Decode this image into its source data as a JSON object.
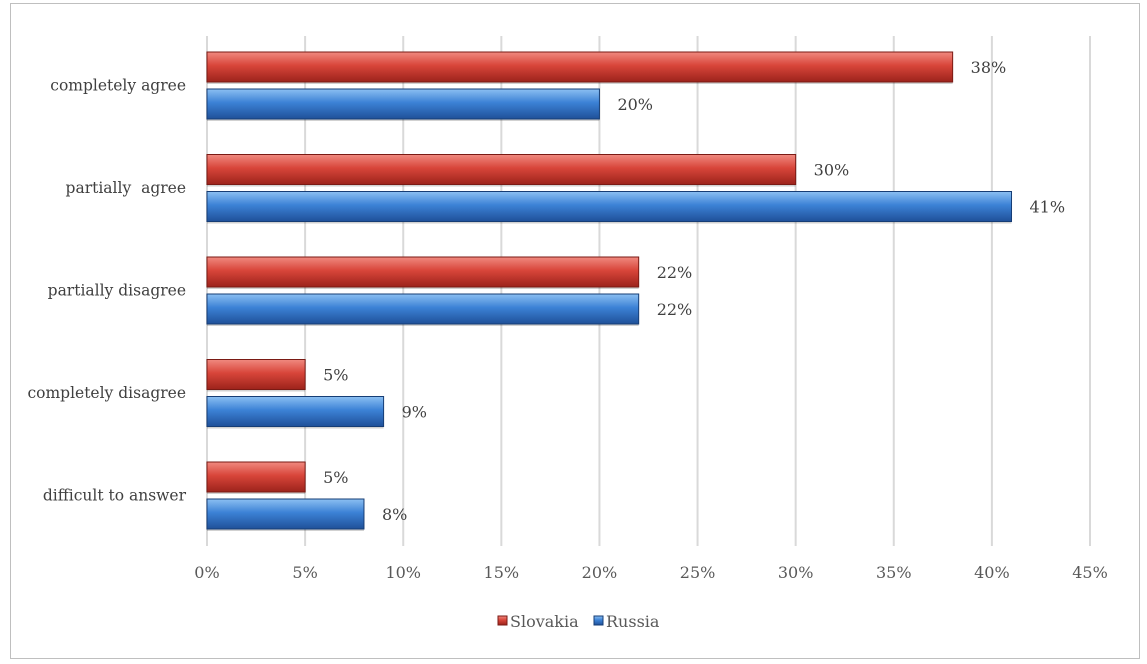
{
  "chart_data": {
    "type": "bar",
    "orientation": "horizontal",
    "categories": [
      "completely agree",
      "partially  agree",
      "partially disagree",
      "completely disagree",
      "difficult to answer"
    ],
    "series": [
      {
        "name": "Slovakia",
        "values": [
          38,
          30,
          22,
          5,
          5
        ],
        "color": "#c0392b"
      },
      {
        "name": "Russia",
        "values": [
          20,
          41,
          22,
          9,
          8
        ],
        "color": "#2e75c9"
      }
    ],
    "value_suffix": "%",
    "xlim": [
      0,
      45
    ],
    "xticks": [
      0,
      5,
      10,
      15,
      20,
      25,
      30,
      35,
      40,
      45
    ],
    "xtick_labels": [
      "0%",
      "5%",
      "10%",
      "15%",
      "20%",
      "25%",
      "30%",
      "35%",
      "40%",
      "45%"
    ],
    "grid": true,
    "legend_position": "bottom"
  }
}
